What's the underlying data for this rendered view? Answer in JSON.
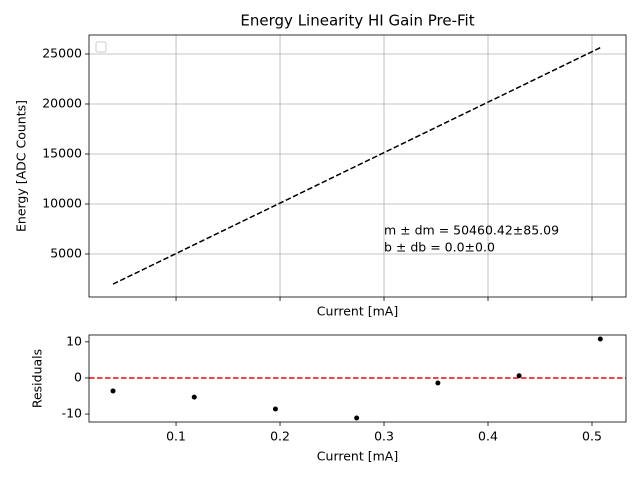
{
  "chart_data": [
    {
      "type": "line",
      "title": "Energy Linearity HI Gain Pre-Fit",
      "xlabel": "Current [mA]",
      "ylabel": "Energy [ADC Counts]",
      "x": [
        0.0394,
        0.1175,
        0.1956,
        0.2737,
        0.3518,
        0.4299,
        0.508
      ],
      "series": [
        {
          "color": "#000000",
          "dashed": true,
          "values": [
            1988,
            5929,
            9870,
            13811,
            17752,
            21693,
            25634
          ]
        }
      ],
      "xlim": [
        0.0163,
        0.5327
      ],
      "xticks": [
        0.1,
        0.2,
        0.3,
        0.4,
        0.5
      ],
      "xtick_labels": false,
      "ylim": [
        700,
        26900
      ],
      "yticks": [
        5000,
        10000,
        15000,
        20000,
        25000
      ],
      "grid": true,
      "annotations": [
        "m ± dm = 50460.42±85.09",
        "b ± db = 0.0±0.0"
      ]
    },
    {
      "type": "scatter",
      "xlabel": "Current [mA]",
      "ylabel": "Residuals",
      "x": [
        0.0394,
        0.1175,
        0.1956,
        0.2737,
        0.3518,
        0.4299,
        0.508
      ],
      "values": [
        -3.6,
        -5.3,
        -8.6,
        -11.1,
        -1.4,
        0.6,
        10.8
      ],
      "color": "#000000",
      "hline": {
        "value": 0,
        "color": "#ff0000"
      },
      "xlim": [
        0.0163,
        0.5327
      ],
      "xticks": [
        0.1,
        0.2,
        0.3,
        0.4,
        0.5
      ],
      "xtick_labels": true,
      "ylim": [
        -12.2,
        11.9
      ],
      "yticks": [
        -10,
        0,
        10
      ],
      "grid": false
    }
  ]
}
